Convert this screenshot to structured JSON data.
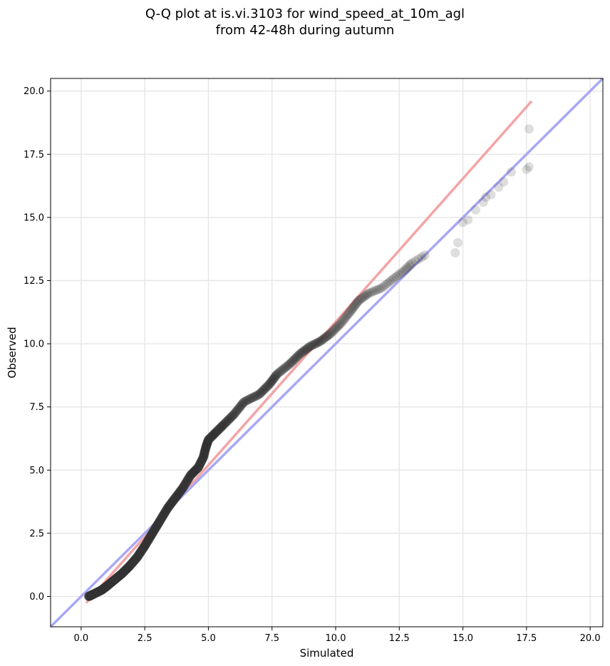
{
  "chart_data": {
    "type": "scatter",
    "title_line1": "Q-Q plot at is.vi.3103 for wind_speed_at_10m_agl",
    "title_line2": "from 42-48h during autumn",
    "xlabel": "Simulated",
    "ylabel": "Observed",
    "xlim": [
      -1.2,
      20.5
    ],
    "ylim": [
      -1.2,
      20.5
    ],
    "xticks": [
      "0.0",
      "2.5",
      "5.0",
      "7.5",
      "10.0",
      "12.5",
      "15.0",
      "17.5",
      "20.0"
    ],
    "yticks": [
      "0.0",
      "2.5",
      "5.0",
      "7.5",
      "10.0",
      "12.5",
      "15.0",
      "17.5",
      "20.0"
    ],
    "grid": true,
    "colors": {
      "points": "#333333",
      "regression_line": "#f4a4a6",
      "identity_line": "#a8a8f4"
    },
    "lines": [
      {
        "role": "regression",
        "x": [
          0.2,
          17.7
        ],
        "y": [
          -0.25,
          19.6
        ]
      },
      {
        "role": "identity",
        "x": [
          -1.2,
          20.5
        ],
        "y": [
          -1.2,
          20.5
        ]
      }
    ],
    "quantile_curve": [
      [
        0.3,
        0.0
      ],
      [
        0.5,
        0.1
      ],
      [
        0.8,
        0.25
      ],
      [
        1.0,
        0.4
      ],
      [
        1.3,
        0.65
      ],
      [
        1.6,
        0.9
      ],
      [
        1.9,
        1.2
      ],
      [
        2.2,
        1.55
      ],
      [
        2.5,
        2.0
      ],
      [
        2.8,
        2.5
      ],
      [
        3.1,
        3.0
      ],
      [
        3.4,
        3.5
      ],
      [
        3.7,
        3.9
      ],
      [
        4.0,
        4.3
      ],
      [
        4.3,
        4.8
      ],
      [
        4.6,
        5.1
      ],
      [
        4.8,
        5.5
      ],
      [
        4.9,
        5.9
      ],
      [
        5.0,
        6.2
      ],
      [
        5.3,
        6.5
      ],
      [
        5.6,
        6.8
      ],
      [
        6.0,
        7.2
      ],
      [
        6.4,
        7.7
      ],
      [
        7.0,
        8.0
      ],
      [
        7.4,
        8.4
      ],
      [
        7.7,
        8.8
      ],
      [
        8.2,
        9.2
      ],
      [
        8.6,
        9.6
      ],
      [
        9.0,
        9.9
      ],
      [
        9.4,
        10.1
      ],
      [
        9.8,
        10.4
      ],
      [
        10.2,
        10.8
      ],
      [
        10.6,
        11.3
      ],
      [
        10.9,
        11.7
      ],
      [
        11.3,
        12.0
      ],
      [
        11.8,
        12.2
      ],
      [
        12.3,
        12.6
      ],
      [
        12.7,
        12.9
      ],
      [
        13.0,
        13.2
      ],
      [
        13.5,
        13.5
      ]
    ],
    "tail_points": [
      [
        14.7,
        13.6
      ],
      [
        14.8,
        14.0
      ],
      [
        15.0,
        14.8
      ],
      [
        15.2,
        14.9
      ],
      [
        15.5,
        15.3
      ],
      [
        15.8,
        15.6
      ],
      [
        15.9,
        15.8
      ],
      [
        16.1,
        15.9
      ],
      [
        16.4,
        16.2
      ],
      [
        16.6,
        16.4
      ],
      [
        16.9,
        16.8
      ],
      [
        17.5,
        16.9
      ],
      [
        17.6,
        17.0
      ],
      [
        17.6,
        18.5
      ]
    ]
  }
}
